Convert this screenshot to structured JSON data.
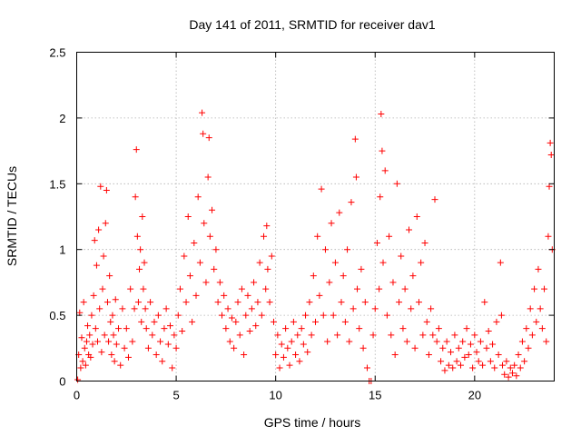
{
  "chart_data": {
    "type": "scatter",
    "title": "Day 141 of 2011, SRMTID for receiver dav1",
    "xlabel": "GPS time / hours",
    "ylabel": "SRMTID / TECUs",
    "xlim": [
      0,
      24
    ],
    "ylim": [
      0,
      2.5
    ],
    "xticks": [
      0,
      5,
      10,
      15,
      20
    ],
    "yticks": [
      0,
      0.5,
      1,
      1.5,
      2,
      2.5
    ],
    "xtick_labels": [
      "0",
      "5",
      "10",
      "15",
      "20"
    ],
    "ytick_labels": [
      "0",
      "0.5",
      "1",
      "1.5",
      "2",
      "2.5"
    ],
    "grid": true,
    "marker": "+",
    "color": "#ff0000",
    "series": [
      {
        "name": "dav1",
        "points": [
          [
            0.05,
            0.01
          ],
          [
            0.1,
            0.2
          ],
          [
            0.15,
            0.52
          ],
          [
            0.2,
            0.1
          ],
          [
            0.25,
            0.33
          ],
          [
            0.3,
            0.15
          ],
          [
            0.35,
            0.6
          ],
          [
            0.4,
            0.25
          ],
          [
            0.45,
            0.12
          ],
          [
            0.5,
            0.3
          ],
          [
            0.55,
            0.42
          ],
          [
            0.6,
            0.2
          ],
          [
            0.65,
            0.35
          ],
          [
            0.7,
            0.18
          ],
          [
            0.75,
            0.5
          ],
          [
            0.8,
            0.28
          ],
          [
            0.85,
            0.65
          ],
          [
            0.9,
            1.07
          ],
          [
            0.95,
            0.4
          ],
          [
            1.0,
            0.88
          ],
          [
            1.05,
            0.3
          ],
          [
            1.1,
            1.15
          ],
          [
            1.15,
            0.55
          ],
          [
            1.2,
            1.48
          ],
          [
            1.25,
            0.22
          ],
          [
            1.3,
            0.7
          ],
          [
            1.35,
            0.95
          ],
          [
            1.4,
            0.35
          ],
          [
            1.45,
            1.2
          ],
          [
            1.5,
            1.45
          ],
          [
            1.55,
            0.6
          ],
          [
            1.6,
            0.3
          ],
          [
            1.65,
            0.8
          ],
          [
            1.7,
            0.45
          ],
          [
            1.75,
            0.2
          ],
          [
            1.8,
            0.5
          ],
          [
            1.85,
            0.35
          ],
          [
            1.9,
            0.15
          ],
          [
            1.95,
            0.62
          ],
          [
            2.0,
            0.28
          ],
          [
            2.1,
            0.4
          ],
          [
            2.2,
            0.12
          ],
          [
            2.3,
            0.55
          ],
          [
            2.4,
            0.25
          ],
          [
            2.5,
            0.4
          ],
          [
            2.6,
            0.18
          ],
          [
            2.7,
            0.7
          ],
          [
            2.8,
            0.3
          ],
          [
            2.9,
            0.55
          ],
          [
            2.95,
            1.4
          ],
          [
            3.0,
            1.76
          ],
          [
            3.05,
            1.1
          ],
          [
            3.1,
            0.6
          ],
          [
            3.15,
            0.85
          ],
          [
            3.2,
            1.0
          ],
          [
            3.25,
            0.45
          ],
          [
            3.3,
            1.25
          ],
          [
            3.35,
            0.7
          ],
          [
            3.4,
            0.9
          ],
          [
            3.45,
            0.55
          ],
          [
            3.5,
            0.4
          ],
          [
            3.6,
            0.25
          ],
          [
            3.7,
            0.6
          ],
          [
            3.8,
            0.35
          ],
          [
            3.9,
            0.45
          ],
          [
            4.0,
            0.2
          ],
          [
            4.1,
            0.5
          ],
          [
            4.2,
            0.3
          ],
          [
            4.3,
            0.15
          ],
          [
            4.4,
            0.4
          ],
          [
            4.5,
            0.55
          ],
          [
            4.6,
            0.28
          ],
          [
            4.7,
            0.42
          ],
          [
            4.8,
            0.1
          ],
          [
            4.9,
            0.35
          ],
          [
            5.0,
            0.25
          ],
          [
            5.1,
            0.5
          ],
          [
            5.2,
            0.7
          ],
          [
            5.3,
            0.38
          ],
          [
            5.4,
            0.95
          ],
          [
            5.5,
            0.6
          ],
          [
            5.6,
            1.25
          ],
          [
            5.7,
            0.8
          ],
          [
            5.8,
            0.45
          ],
          [
            5.9,
            1.05
          ],
          [
            6.0,
            0.65
          ],
          [
            6.1,
            1.4
          ],
          [
            6.2,
            0.9
          ],
          [
            6.3,
            2.04
          ],
          [
            6.35,
            1.88
          ],
          [
            6.4,
            1.2
          ],
          [
            6.5,
            0.75
          ],
          [
            6.6,
            1.55
          ],
          [
            6.65,
            1.85
          ],
          [
            6.7,
            1.1
          ],
          [
            6.8,
            1.3
          ],
          [
            6.9,
            0.85
          ],
          [
            7.0,
            1.0
          ],
          [
            7.1,
            0.6
          ],
          [
            7.2,
            0.75
          ],
          [
            7.3,
            0.5
          ],
          [
            7.4,
            0.65
          ],
          [
            7.5,
            0.4
          ],
          [
            7.6,
            0.55
          ],
          [
            7.7,
            0.3
          ],
          [
            7.8,
            0.48
          ],
          [
            7.9,
            0.25
          ],
          [
            8.0,
            0.45
          ],
          [
            8.1,
            0.6
          ],
          [
            8.2,
            0.35
          ],
          [
            8.3,
            0.7
          ],
          [
            8.4,
            0.2
          ],
          [
            8.5,
            0.5
          ],
          [
            8.6,
            0.65
          ],
          [
            8.7,
            0.38
          ],
          [
            8.8,
            0.55
          ],
          [
            8.9,
            0.75
          ],
          [
            9.0,
            0.42
          ],
          [
            9.1,
            0.6
          ],
          [
            9.2,
            0.9
          ],
          [
            9.3,
            0.5
          ],
          [
            9.4,
            1.1
          ],
          [
            9.5,
            0.7
          ],
          [
            9.55,
            1.18
          ],
          [
            9.6,
            0.85
          ],
          [
            9.7,
            0.6
          ],
          [
            9.8,
            0.95
          ],
          [
            9.9,
            0.45
          ],
          [
            10.0,
            0.2
          ],
          [
            10.1,
            0.35
          ],
          [
            10.2,
            0.1
          ],
          [
            10.3,
            0.28
          ],
          [
            10.4,
            0.18
          ],
          [
            10.5,
            0.4
          ],
          [
            10.6,
            0.25
          ],
          [
            10.7,
            0.12
          ],
          [
            10.8,
            0.3
          ],
          [
            10.9,
            0.45
          ],
          [
            11.0,
            0.2
          ],
          [
            11.1,
            0.35
          ],
          [
            11.2,
            0.15
          ],
          [
            11.3,
            0.4
          ],
          [
            11.4,
            0.28
          ],
          [
            11.5,
            0.5
          ],
          [
            11.6,
            0.22
          ],
          [
            11.7,
            0.6
          ],
          [
            11.8,
            0.35
          ],
          [
            11.9,
            0.8
          ],
          [
            12.0,
            0.45
          ],
          [
            12.1,
            1.1
          ],
          [
            12.2,
            0.65
          ],
          [
            12.3,
            1.46
          ],
          [
            12.4,
            0.5
          ],
          [
            12.5,
            1.0
          ],
          [
            12.6,
            0.3
          ],
          [
            12.7,
            0.75
          ],
          [
            12.8,
            1.2
          ],
          [
            12.9,
            0.5
          ],
          [
            13.0,
            0.9
          ],
          [
            13.1,
            0.35
          ],
          [
            13.2,
            1.28
          ],
          [
            13.3,
            0.6
          ],
          [
            13.4,
            0.8
          ],
          [
            13.5,
            0.45
          ],
          [
            13.6,
            1.0
          ],
          [
            13.7,
            0.3
          ],
          [
            13.8,
            1.36
          ],
          [
            13.9,
            0.55
          ],
          [
            14.0,
            1.84
          ],
          [
            14.05,
            1.55
          ],
          [
            14.1,
            0.7
          ],
          [
            14.2,
            0.4
          ],
          [
            14.3,
            0.85
          ],
          [
            14.4,
            0.25
          ],
          [
            14.5,
            0.6
          ],
          [
            14.6,
            0.1
          ],
          [
            14.7,
            0.0
          ],
          [
            14.8,
            0.0
          ],
          [
            14.9,
            0.35
          ],
          [
            15.0,
            0.55
          ],
          [
            15.1,
            1.05
          ],
          [
            15.2,
            0.7
          ],
          [
            15.25,
            1.4
          ],
          [
            15.3,
            2.03
          ],
          [
            15.35,
            1.75
          ],
          [
            15.4,
            0.9
          ],
          [
            15.5,
            1.6
          ],
          [
            15.6,
            0.5
          ],
          [
            15.7,
            1.1
          ],
          [
            15.8,
            0.35
          ],
          [
            15.9,
            0.75
          ],
          [
            16.0,
            0.2
          ],
          [
            16.1,
            1.5
          ],
          [
            16.2,
            0.6
          ],
          [
            16.3,
            0.95
          ],
          [
            16.4,
            0.4
          ],
          [
            16.5,
            0.7
          ],
          [
            16.6,
            0.3
          ],
          [
            16.7,
            1.15
          ],
          [
            16.8,
            0.55
          ],
          [
            16.9,
            0.8
          ],
          [
            17.0,
            0.25
          ],
          [
            17.1,
            1.25
          ],
          [
            17.2,
            0.6
          ],
          [
            17.3,
            0.9
          ],
          [
            17.4,
            0.35
          ],
          [
            17.5,
            1.05
          ],
          [
            17.6,
            0.45
          ],
          [
            17.7,
            0.2
          ],
          [
            17.8,
            0.55
          ],
          [
            17.9,
            0.35
          ],
          [
            18.0,
            1.38
          ],
          [
            18.1,
            0.3
          ],
          [
            18.2,
            0.4
          ],
          [
            18.3,
            0.15
          ],
          [
            18.4,
            0.25
          ],
          [
            18.5,
            0.08
          ],
          [
            18.6,
            0.3
          ],
          [
            18.7,
            0.12
          ],
          [
            18.8,
            0.22
          ],
          [
            18.9,
            0.1
          ],
          [
            19.0,
            0.35
          ],
          [
            19.1,
            0.15
          ],
          [
            19.2,
            0.25
          ],
          [
            19.3,
            0.12
          ],
          [
            19.4,
            0.3
          ],
          [
            19.5,
            0.18
          ],
          [
            19.6,
            0.4
          ],
          [
            19.7,
            0.2
          ],
          [
            19.8,
            0.28
          ],
          [
            19.9,
            0.1
          ],
          [
            20.0,
            0.35
          ],
          [
            20.1,
            0.22
          ],
          [
            20.2,
            0.15
          ],
          [
            20.3,
            0.3
          ],
          [
            20.4,
            0.12
          ],
          [
            20.5,
            0.6
          ],
          [
            20.6,
            0.25
          ],
          [
            20.7,
            0.38
          ],
          [
            20.8,
            0.15
          ],
          [
            20.9,
            0.28
          ],
          [
            21.0,
            0.1
          ],
          [
            21.1,
            0.45
          ],
          [
            21.2,
            0.2
          ],
          [
            21.3,
            0.9
          ],
          [
            21.35,
            0.5
          ],
          [
            21.4,
            0.12
          ],
          [
            21.5,
            0.05
          ],
          [
            21.6,
            0.15
          ],
          [
            21.7,
            0.03
          ],
          [
            21.8,
            0.1
          ],
          [
            21.9,
            0.06
          ],
          [
            22.0,
            0.12
          ],
          [
            22.1,
            0.04
          ],
          [
            22.2,
            0.2
          ],
          [
            22.3,
            0.1
          ],
          [
            22.4,
            0.3
          ],
          [
            22.5,
            0.15
          ],
          [
            22.6,
            0.4
          ],
          [
            22.7,
            0.25
          ],
          [
            22.8,
            0.55
          ],
          [
            22.9,
            0.35
          ],
          [
            23.0,
            0.7
          ],
          [
            23.1,
            0.45
          ],
          [
            23.2,
            0.85
          ],
          [
            23.3,
            0.55
          ],
          [
            23.4,
            0.4
          ],
          [
            23.5,
            0.7
          ],
          [
            23.6,
            0.3
          ],
          [
            23.7,
            1.1
          ],
          [
            23.75,
            1.48
          ],
          [
            23.8,
            1.81
          ],
          [
            23.85,
            1.72
          ],
          [
            23.9,
            1.0
          ]
        ]
      }
    ]
  }
}
